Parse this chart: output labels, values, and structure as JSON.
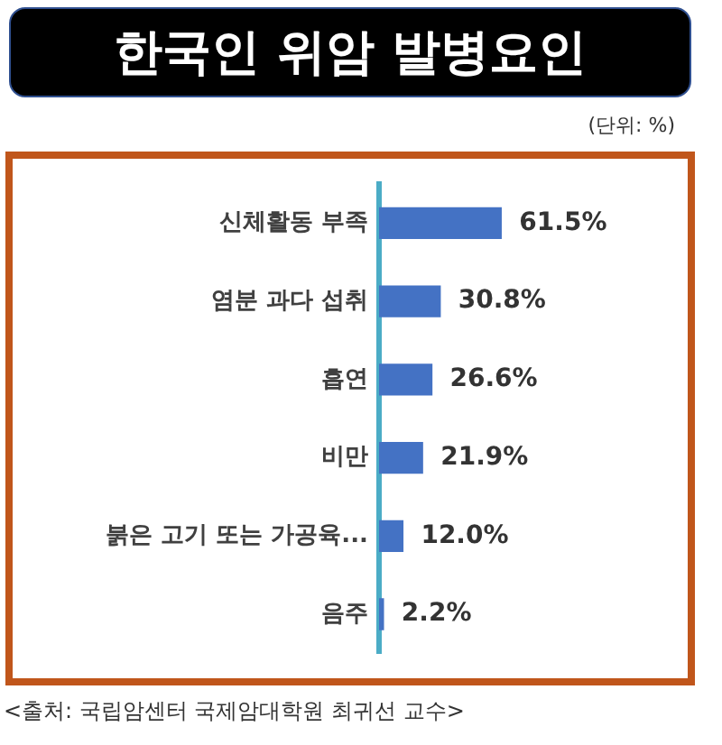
{
  "chart_data": {
    "type": "bar",
    "orientation": "horizontal",
    "title": "한국인 위암 발병요인",
    "categories": [
      "신체활동 부족",
      "염분 과다 섭취",
      "흡연",
      "비만",
      "붉은 고기 또는 가공육...",
      "음주"
    ],
    "values": [
      61.5,
      30.8,
      26.6,
      21.9,
      12.0,
      2.2
    ],
    "value_labels": [
      "61.5%",
      "30.8%",
      "26.6%",
      "21.9%",
      "12.0%",
      "2.2%"
    ],
    "color": "#4472c4",
    "tick_labels": "y",
    "grid": false,
    "legend": false,
    "annotations": [
      "(단위: %)",
      "<출처: 국립암센터 국제암대학원 최귀선 교수>"
    ]
  }
}
